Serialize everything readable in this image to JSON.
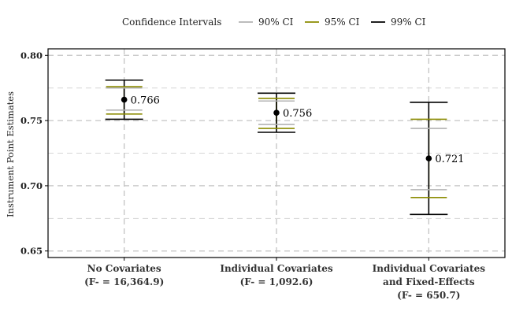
{
  "legend": {
    "title": "Confidence Intervals",
    "items": [
      {
        "label": "90% CI",
        "color": "#b3b3b3"
      },
      {
        "label": "95% CI",
        "color": "#8b8b00"
      },
      {
        "label": "99% CI",
        "color": "#000000"
      }
    ]
  },
  "chart_data": {
    "type": "errorbar",
    "ylabel": "Instrument Point Estimates",
    "xlabel": "",
    "ylim": [
      0.645,
      0.805
    ],
    "yticks": [
      0.65,
      0.7,
      0.75,
      0.8
    ],
    "ytick_labels": [
      "0.65",
      "0.70",
      "0.75",
      "0.80"
    ],
    "grid": true,
    "legend_position": "top",
    "categories": [
      {
        "lines": [
          "No Covariates",
          "(F- = 16,364.9)"
        ]
      },
      {
        "lines": [
          "Individual Covariates",
          "(F- = 1,092.6)"
        ]
      },
      {
        "lines": [
          "Individual Covariates",
          "and Fixed-Effects",
          "(F- = 650.7)"
        ]
      }
    ],
    "points": [
      {
        "estimate": 0.766,
        "label": "0.766",
        "ci90": [
          0.758,
          0.775
        ],
        "ci95": [
          0.755,
          0.776
        ],
        "ci99": [
          0.751,
          0.781
        ]
      },
      {
        "estimate": 0.756,
        "label": "0.756",
        "ci90": [
          0.747,
          0.765
        ],
        "ci95": [
          0.744,
          0.767
        ],
        "ci99": [
          0.741,
          0.771
        ]
      },
      {
        "estimate": 0.721,
        "label": "0.721",
        "ci90": [
          0.697,
          0.744
        ],
        "ci95": [
          0.691,
          0.751
        ],
        "ci99": [
          0.678,
          0.764
        ]
      }
    ]
  }
}
